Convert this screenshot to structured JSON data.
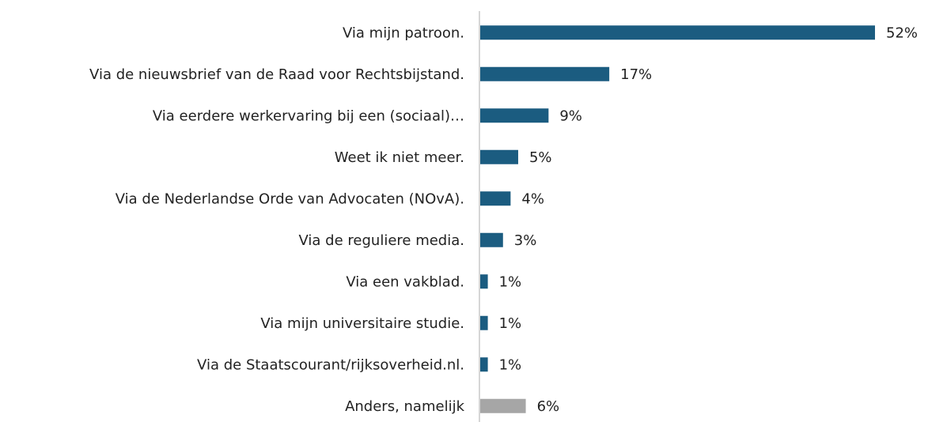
{
  "chart_data": {
    "type": "hbar",
    "categories": [
      "Via mijn patroon.",
      "Via de nieuwsbrief van de Raad voor Rechtsbijstand.",
      "Via eerdere werkervaring bij een (sociaal)…",
      "Weet ik niet meer.",
      "Via de Nederlandse Orde van Advocaten (NOvA).",
      "Via de reguliere media.",
      "Via een vakblad.",
      "Via mijn universitaire studie.",
      "Via de Staatscourant/rijksoverheid.nl.",
      "Anders, namelijk"
    ],
    "values": [
      52,
      17,
      9,
      5,
      4,
      3,
      1,
      1,
      1,
      6
    ],
    "value_labels": [
      "52%",
      "17%",
      "9%",
      "5%",
      "4%",
      "3%",
      "1%",
      "1%",
      "1%",
      "6%"
    ],
    "colors": [
      "#1b5c80",
      "#1b5c80",
      "#1b5c80",
      "#1b5c80",
      "#1b5c80",
      "#1b5c80",
      "#1b5c80",
      "#1b5c80",
      "#1b5c80",
      "#a6a6a6"
    ],
    "xlim": [
      0,
      52
    ]
  }
}
